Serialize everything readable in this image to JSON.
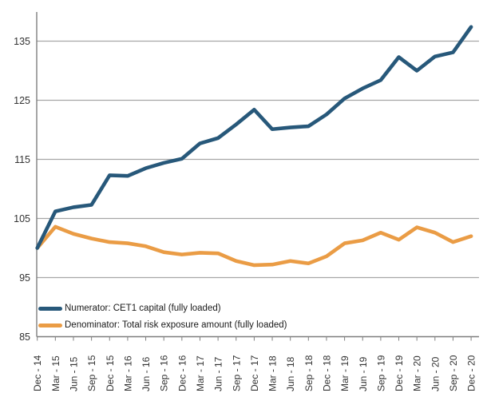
{
  "chart_data": {
    "type": "line",
    "title": "",
    "xlabel": "",
    "ylabel": "",
    "categories": [
      "Dec - 14",
      "Mar - 15",
      "Jun - 15",
      "Sep - 15",
      "Dec - 15",
      "Mar - 16",
      "Jun - 16",
      "Sep - 16",
      "Dec - 16",
      "Mar - 17",
      "Jun - 17",
      "Sep - 17",
      "Dec - 17",
      "Mar - 18",
      "Jun - 18",
      "Sep - 18",
      "Dec - 18",
      "Mar - 19",
      "Jun - 19",
      "Sep - 19",
      "Dec - 19",
      "Mar - 20",
      "Jun - 20",
      "Sep - 20",
      "Dec - 20"
    ],
    "series": [
      {
        "name": "Numerator: CET1 capital (fully loaded)",
        "color": "#27587A",
        "values": [
          100.0,
          106.2,
          106.9,
          107.3,
          112.3,
          112.2,
          113.5,
          114.4,
          115.1,
          117.7,
          118.6,
          120.9,
          123.4,
          120.1,
          120.4,
          120.6,
          122.6,
          125.3,
          127.0,
          128.4,
          132.3,
          130.0,
          132.4,
          133.1,
          137.4
        ]
      },
      {
        "name": "Denominator: Total risk exposure amount (fully loaded)",
        "color": "#EA9C45",
        "values": [
          100.0,
          103.6,
          102.4,
          101.6,
          101.0,
          100.8,
          100.3,
          99.3,
          98.9,
          99.2,
          99.1,
          97.8,
          97.1,
          97.2,
          97.8,
          97.4,
          98.6,
          100.8,
          101.3,
          102.6,
          101.4,
          103.5,
          102.6,
          101.0,
          102.0
        ]
      }
    ],
    "yticks": [
      85,
      95,
      105,
      115,
      125,
      135
    ],
    "ylim": [
      85,
      140
    ],
    "grid": true,
    "legend_position": "bottom-left-inside"
  },
  "style": {
    "grid_color": "#A6A6A6",
    "axis_color": "#7F7F7F",
    "tick_label_color": "#333333",
    "background": "#FFFFFF"
  }
}
